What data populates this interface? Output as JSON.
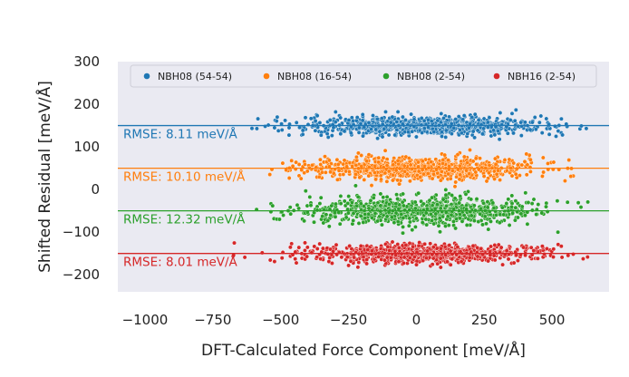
{
  "chart_data": {
    "type": "scatter",
    "title": "",
    "xlabel": "DFT-Calculated Force Component [meV/Å]",
    "ylabel": "Shifted Residual [meV/Å]",
    "xlim": [
      -1100,
      710
    ],
    "ylim": [
      -240,
      300
    ],
    "xticks": [
      -1000,
      -750,
      -500,
      -250,
      0,
      250,
      500
    ],
    "yticks": [
      -200,
      -100,
      0,
      100,
      200,
      300
    ],
    "xtick_labels": [
      "−1000",
      "−750",
      "−500",
      "−250",
      "0",
      "250",
      "500"
    ],
    "ytick_labels": [
      "−200",
      "−100",
      "0",
      "100",
      "200",
      "300"
    ],
    "grid": false,
    "legend_position": "top",
    "series": [
      {
        "name": "NBH08 (54-54)",
        "color": "#1f77b4",
        "offset": 150,
        "rmse_label": "RMSE: 8.11 meV/Å",
        "x_range": [
          -620,
          650
        ],
        "residual_spread": 8.11
      },
      {
        "name": "NBH08 (16-54)",
        "color": "#ff7f0e",
        "offset": 50,
        "rmse_label": "RMSE: 10.10 meV/Å",
        "x_range": [
          -560,
          640
        ],
        "residual_spread": 10.1
      },
      {
        "name": "NBH08 (2-54)",
        "color": "#2ca02c",
        "offset": -50,
        "rmse_label": "RMSE: 12.32 meV/Å",
        "x_range": [
          -610,
          650
        ],
        "residual_spread": 12.32
      },
      {
        "name": "NBH16 (2-54)",
        "color": "#d62728",
        "offset": -150,
        "rmse_label": "RMSE: 8.01 meV/Å",
        "x_range": [
          -680,
          640
        ],
        "residual_spread": 8.01
      }
    ]
  }
}
